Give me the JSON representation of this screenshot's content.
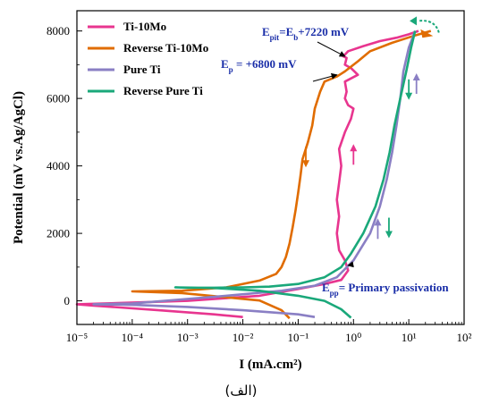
{
  "chart_data": {
    "type": "line",
    "xlabel": "I (mA.cm²)",
    "ylabel": "Potential (mV vs.Ag/AgCl)",
    "xscale": "log",
    "xlim": [
      1e-05,
      100
    ],
    "ylim": [
      -700,
      8600
    ],
    "x_ticks": [
      "10⁻⁵",
      "10⁻⁴",
      "10⁻³",
      "10⁻²",
      "10⁻¹",
      "10⁰",
      "10¹",
      "10²"
    ],
    "y_ticks": [
      "0",
      "2000",
      "4000",
      "6000",
      "8000"
    ],
    "grid": false,
    "legend_position": "top-left",
    "series": [
      {
        "name": "Ti-10Mo",
        "color": "#e8358f",
        "x": [
          0.01,
          0.003,
          0.0003,
          2e-05,
          1e-05,
          3e-05,
          0.001,
          0.02,
          0.1,
          0.3,
          0.6,
          0.8,
          0.7,
          0.55,
          0.5,
          0.55,
          0.5,
          0.55,
          0.6,
          0.55,
          0.7,
          0.9,
          1.0,
          0.8,
          0.7,
          0.75,
          0.7,
          1.2,
          0.9,
          0.7,
          0.75,
          0.65,
          0.7,
          0.8,
          1.5,
          3,
          6,
          10,
          15
        ],
        "y": [
          -480,
          -400,
          -280,
          -140,
          -100,
          -80,
          0,
          150,
          350,
          500,
          620,
          900,
          1200,
          1500,
          2000,
          2500,
          3000,
          3500,
          4000,
          4500,
          5000,
          5400,
          5700,
          5800,
          6000,
          6200,
          6500,
          6700,
          6900,
          7000,
          7200,
          7250,
          7300,
          7400,
          7550,
          7700,
          7800,
          7900,
          8000
        ]
      },
      {
        "name": "Reverse Ti-10Mo",
        "color": "#e06c00",
        "x": [
          25,
          12,
          5,
          2,
          1.2,
          0.7,
          0.5,
          0.3,
          0.25,
          0.2,
          0.18,
          0.15,
          0.12,
          0.11,
          0.1,
          0.09,
          0.08,
          0.07,
          0.06,
          0.05,
          0.04,
          0.02,
          0.005,
          0.0008,
          0.0001,
          0.0008,
          0.02,
          0.05,
          0.07
        ],
        "y": [
          8000,
          7850,
          7650,
          7400,
          7100,
          6800,
          6650,
          6500,
          6200,
          5700,
          5200,
          4700,
          4200,
          3700,
          3200,
          2700,
          2200,
          1700,
          1300,
          1000,
          800,
          600,
          400,
          300,
          280,
          230,
          10,
          -280,
          -520
        ]
      },
      {
        "name": "Pure Ti",
        "color": "#8a7fc4",
        "x": [
          0.2,
          0.1,
          0.01,
          0.001,
          0.0001,
          2e-05,
          0.0001,
          0.005,
          0.05,
          0.2,
          0.5,
          1,
          2,
          3,
          4,
          5,
          6,
          7,
          8,
          10,
          13
        ],
        "y": [
          -480,
          -400,
          -280,
          -180,
          -120,
          -100,
          -80,
          150,
          300,
          450,
          700,
          1200,
          2000,
          2800,
          3600,
          4400,
          5200,
          6000,
          6800,
          7500,
          8000
        ]
      },
      {
        "name": "Reverse Pure Ti",
        "color": "#1aa87a",
        "x": [
          13,
          11,
          9,
          7,
          5.5,
          4.5,
          3.5,
          2.5,
          1.5,
          0.9,
          0.6,
          0.3,
          0.1,
          0.03,
          0.01,
          0.003,
          0.001,
          0.0006,
          0.003,
          0.02,
          0.1,
          0.3,
          0.6,
          0.9
        ],
        "y": [
          8000,
          7500,
          6800,
          6000,
          5200,
          4400,
          3600,
          2800,
          2000,
          1400,
          1000,
          700,
          500,
          420,
          400,
          390,
          390,
          400,
          380,
          300,
          150,
          0,
          -250,
          -500
        ]
      }
    ],
    "annotations": [
      {
        "parts": [
          "E",
          "pit",
          "=E",
          "b",
          "+7220 mV"
        ],
        "x": 0.7,
        "y": 7250
      },
      {
        "parts": [
          "E",
          "p",
          " = +6800 mV"
        ],
        "x": 0.5,
        "y": 6700
      },
      {
        "parts": [
          "E",
          "pp",
          "= Primary passivation"
        ],
        "x": 0.8,
        "y": 1050
      }
    ],
    "caption": "(الف)"
  }
}
